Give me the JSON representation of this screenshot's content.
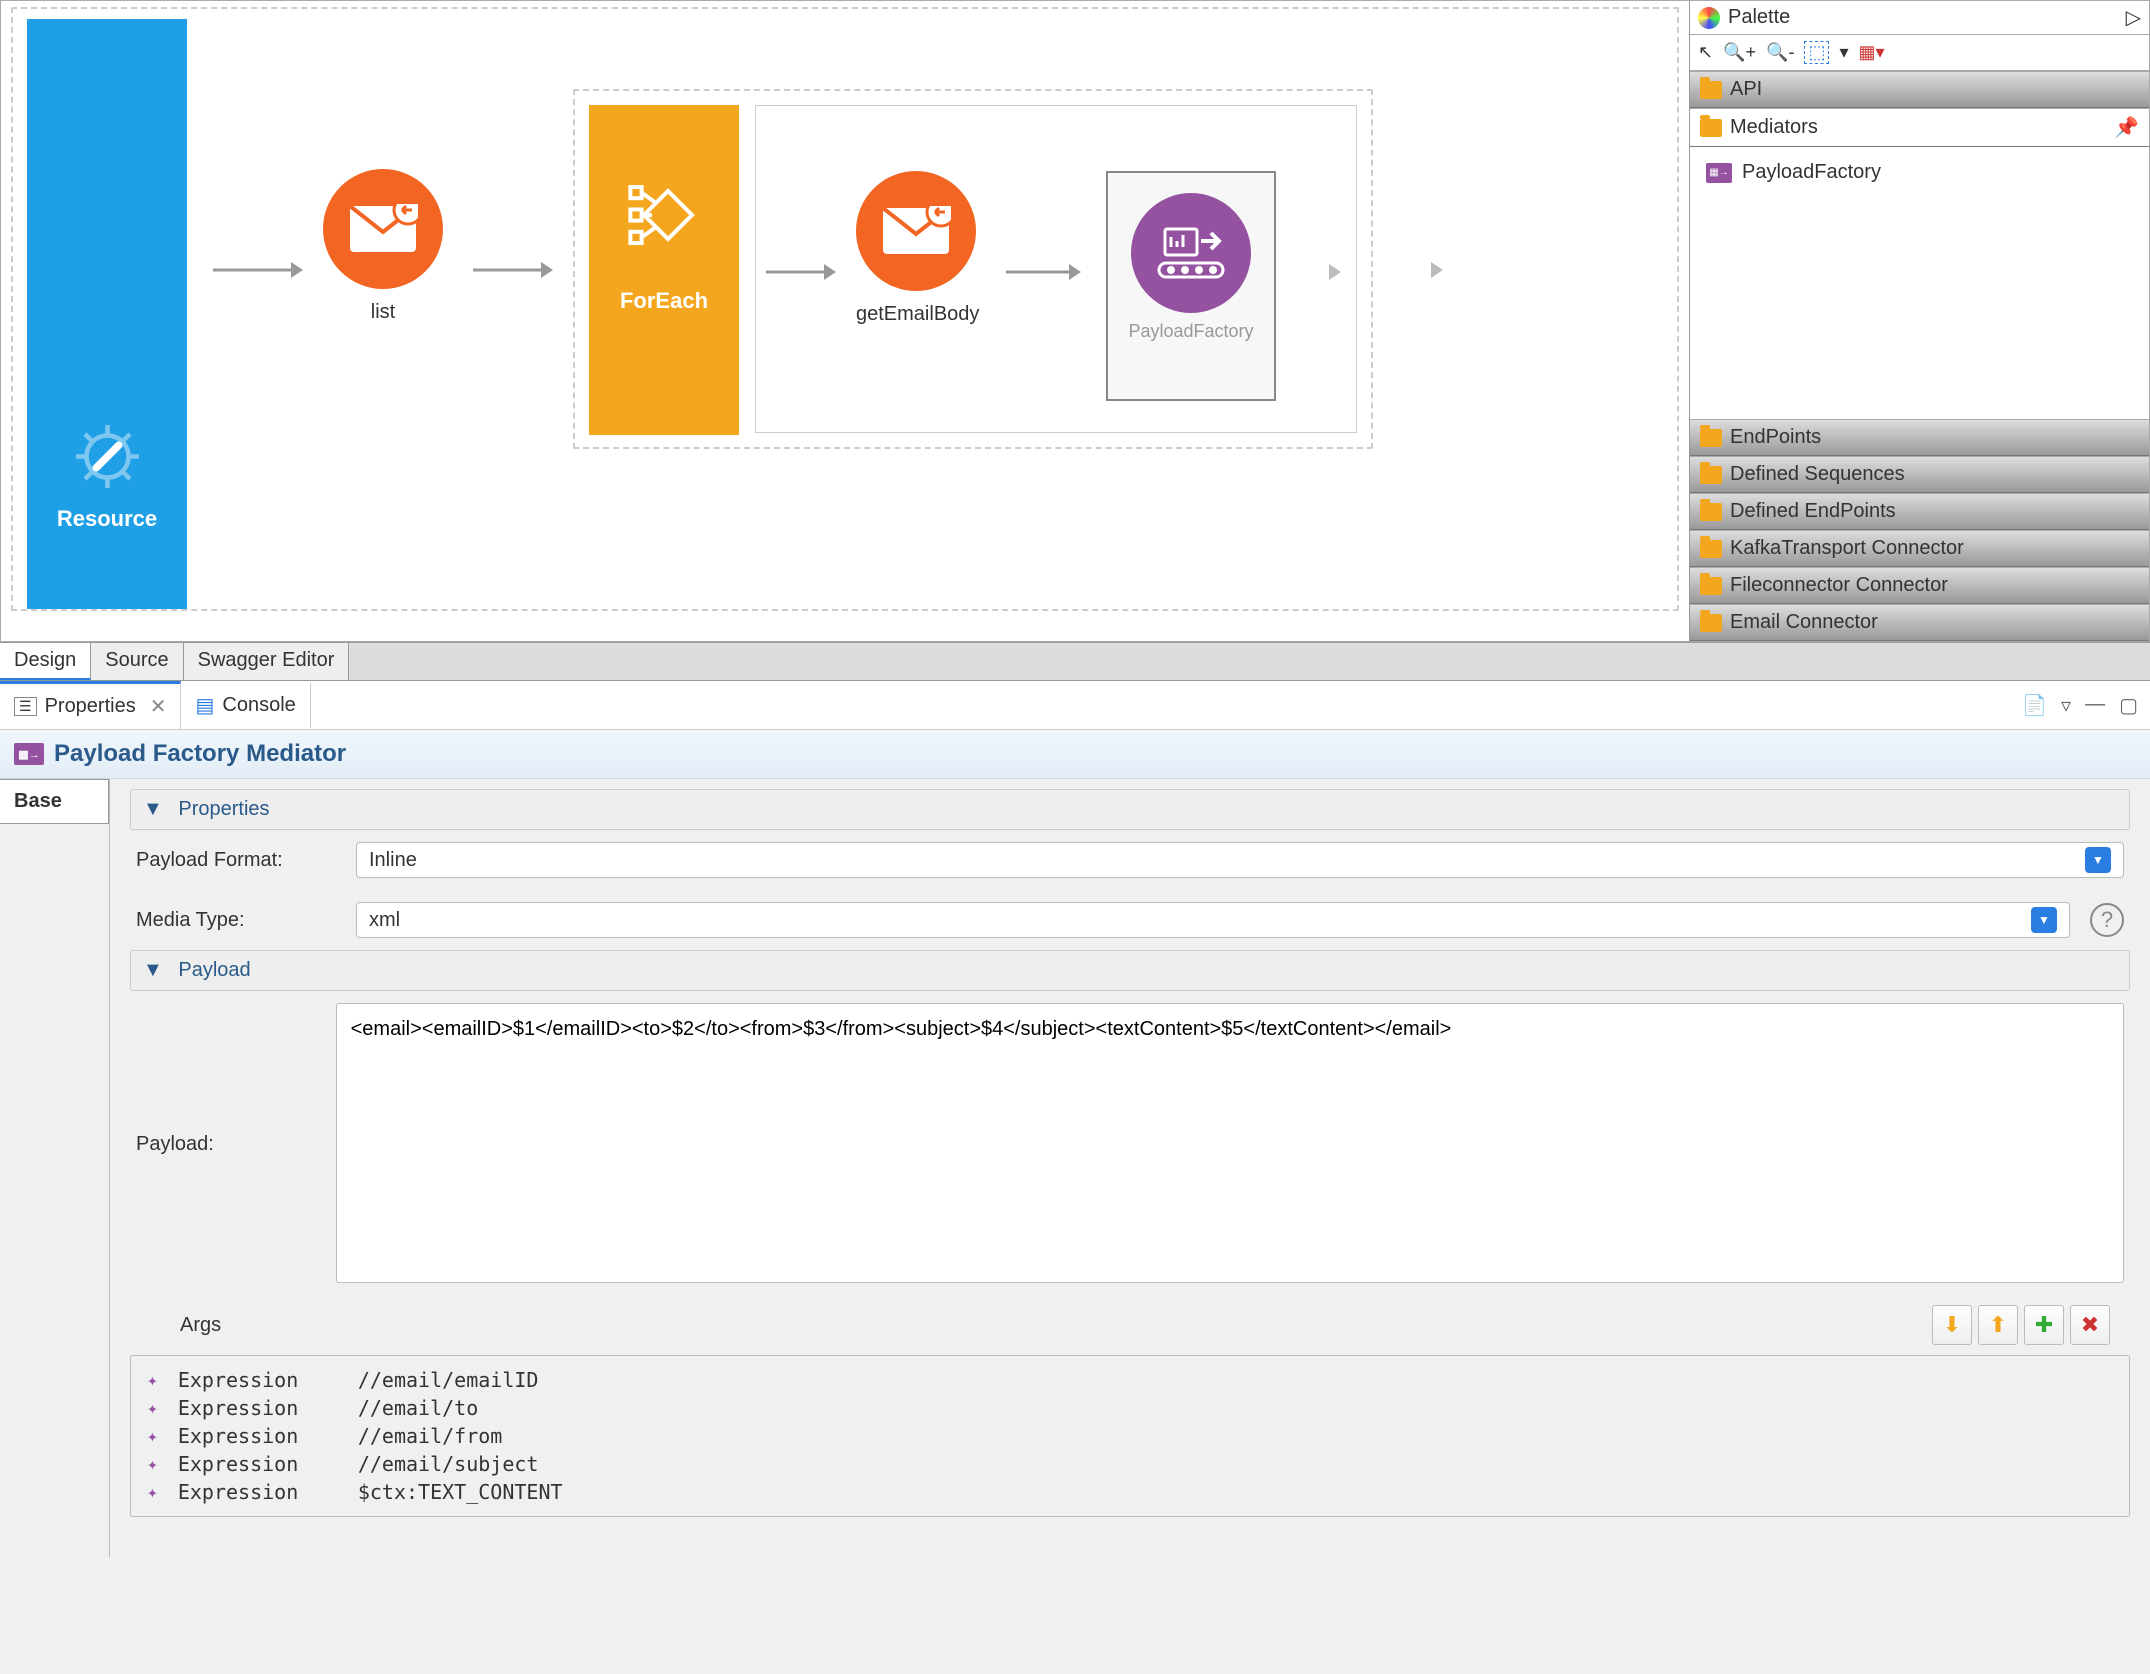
{
  "resource": {
    "label": "Resource"
  },
  "flow": {
    "list": {
      "label": "list",
      "color": "#f26522"
    },
    "foreach": {
      "label": "ForEach",
      "bg": "#f4a71e"
    },
    "getEmailBody": {
      "label": "getEmailBody",
      "color": "#f26522"
    },
    "payloadFactory": {
      "label": "PayloadFactory",
      "color": "#9452a1"
    }
  },
  "palette": {
    "title": "Palette",
    "categories": {
      "api": "API",
      "mediators": "Mediators",
      "endpoints": "EndPoints",
      "definedSequences": "Defined Sequences",
      "definedEndpoints": "Defined EndPoints",
      "kafka": "KafkaTransport Connector",
      "fileconnector": "Fileconnector Connector",
      "email": "Email Connector"
    },
    "mediator_item": "PayloadFactory"
  },
  "tabs": {
    "design": "Design",
    "source": "Source",
    "swagger": "Swagger Editor"
  },
  "panels": {
    "properties": "Properties",
    "console": "Console"
  },
  "mediator": {
    "title": "Payload Factory Mediator"
  },
  "sections": {
    "properties": "Properties",
    "payload": "Payload"
  },
  "form": {
    "payloadFormat": {
      "label": "Payload Format:",
      "value": "Inline"
    },
    "mediaType": {
      "label": "Media Type:",
      "value": "xml"
    },
    "payload": {
      "label": "Payload:",
      "value": "<email><emailID>$1</emailID><to>$2</to><from>$3</from><subject>$4</subject><textContent>$5</textContent></email>"
    },
    "args": {
      "label": "Args",
      "rows": [
        {
          "type": "Expression",
          "value": "//email/emailID"
        },
        {
          "type": "Expression",
          "value": "//email/to"
        },
        {
          "type": "Expression",
          "value": "//email/from"
        },
        {
          "type": "Expression",
          "value": "//email/subject"
        },
        {
          "type": "Expression",
          "value": "$ctx:TEXT_CONTENT"
        }
      ]
    }
  },
  "sideTab": {
    "base": "Base"
  },
  "colors": {
    "blue": "#1e9fe6",
    "orange": "#f26522",
    "yellow": "#f4a71e",
    "purple": "#9452a1",
    "link": "#2a5a8a"
  }
}
